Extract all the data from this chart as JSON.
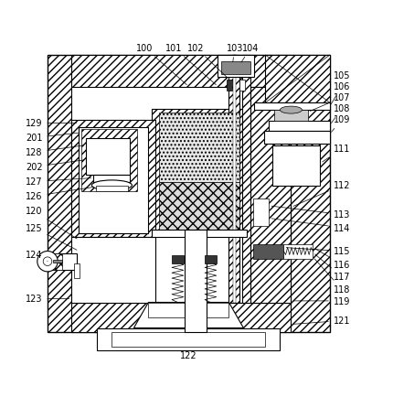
{
  "bg_color": "#ffffff",
  "line_color": "#000000",
  "figsize": [
    4.3,
    4.35
  ],
  "dpi": 100
}
